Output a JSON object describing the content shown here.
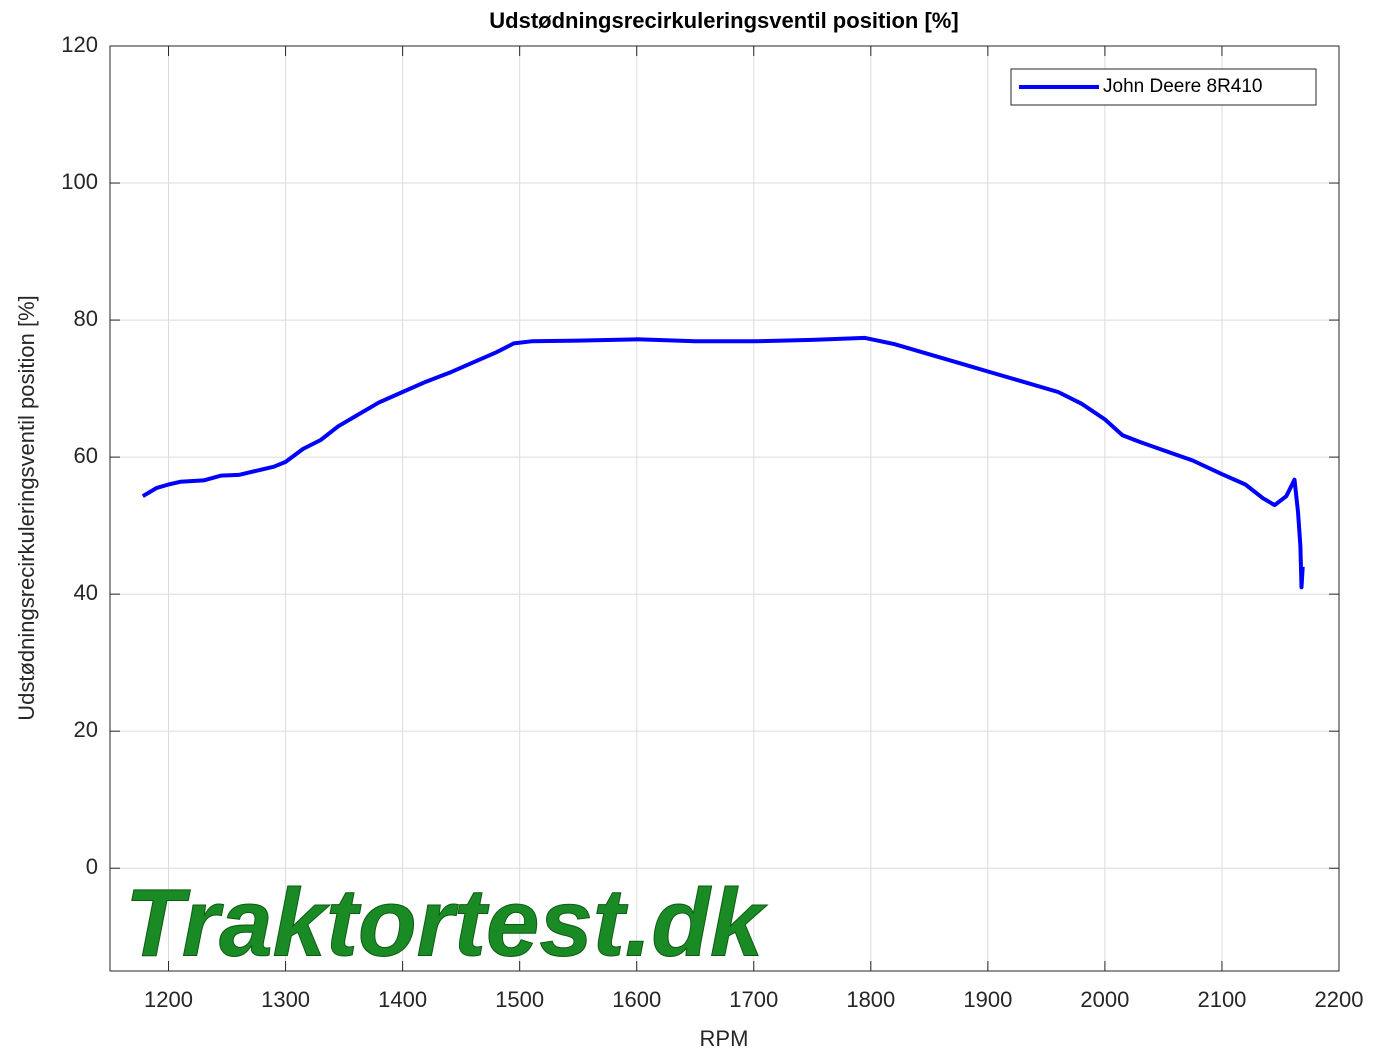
{
  "chart_data": {
    "type": "line",
    "title": "Udstødningsrecirkuleringsventil position [%]",
    "xlabel": "RPM",
    "ylabel": "Udstødningsrecirkuleringsventil position [%]",
    "watermark": "Traktortest.dk",
    "xlim": [
      1150,
      2200
    ],
    "xticks": [
      1200,
      1300,
      1400,
      1500,
      1600,
      1700,
      1800,
      1900,
      2000,
      2100,
      2200
    ],
    "ylim": [
      -15,
      120
    ],
    "yticks": [
      0,
      20,
      40,
      60,
      80,
      100,
      120
    ],
    "grid": true,
    "legend": "northeast",
    "x": [
      1178,
      1190,
      1200,
      1210,
      1230,
      1245,
      1260,
      1275,
      1290,
      1300,
      1315,
      1330,
      1345,
      1360,
      1380,
      1400,
      1420,
      1440,
      1460,
      1480,
      1495,
      1510,
      1550,
      1600,
      1650,
      1700,
      1750,
      1795,
      1820,
      1850,
      1880,
      1900,
      1930,
      1960,
      1980,
      2000,
      2015,
      2030,
      2050,
      2075,
      2100,
      2120,
      2135,
      2145,
      2155,
      2162,
      2165,
      2167,
      2168,
      2169
    ],
    "series": [
      {
        "name": "John Deere 8R410",
        "color": "#0000ff",
        "values": [
          54.3,
          55.5,
          56,
          56.4,
          56.6,
          57.3,
          57.4,
          58.0,
          58.6,
          59.3,
          61.2,
          62.5,
          64.5,
          66,
          68,
          69.5,
          71,
          72.3,
          73.8,
          75.3,
          76.6,
          76.9,
          77.0,
          77.2,
          76.9,
          76.9,
          77.1,
          77.4,
          76.5,
          75,
          73.5,
          72.5,
          71,
          69.5,
          67.8,
          65.5,
          63.2,
          62.2,
          61,
          59.5,
          57.5,
          56,
          54,
          53,
          54.3,
          56.7,
          52,
          47,
          41,
          44
        ]
      }
    ]
  }
}
